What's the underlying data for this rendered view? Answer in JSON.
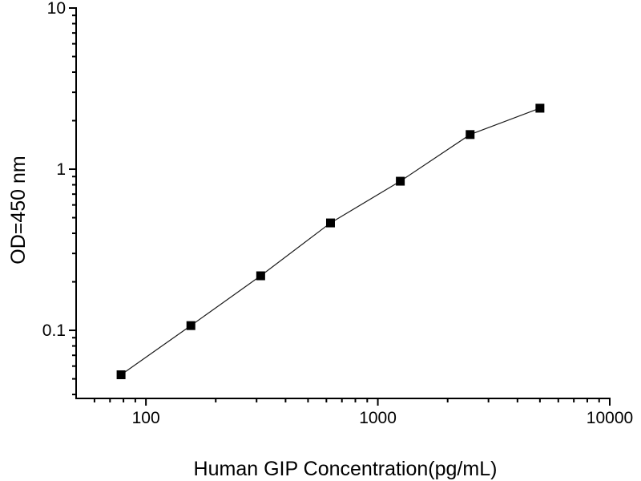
{
  "figure": {
    "background_color": "#ffffff",
    "axis_color": "#000000",
    "marker_color": "#000000",
    "curve_color": "#1a1a1a"
  },
  "chart_data": {
    "type": "line",
    "title": "",
    "xlabel": "Human GIP Concentration(pg/mL)",
    "ylabel": "OD=450 nm",
    "x_scale": "log",
    "y_scale": "log",
    "xlim": [
      50,
      10000
    ],
    "ylim": [
      0.0378,
      10
    ],
    "grid": false,
    "legend": null,
    "x_major_ticks": [
      100,
      1000,
      10000
    ],
    "x_major_tick_labels": [
      "100",
      "1000",
      "10000"
    ],
    "y_major_ticks": [
      10,
      1,
      0.1
    ],
    "y_major_tick_labels": [
      "10",
      "1",
      "0.1"
    ],
    "marker": "filled-square",
    "series": [
      {
        "name": "standard-curve",
        "points": [
          {
            "x": 78.125,
            "y": 0.053
          },
          {
            "x": 156.25,
            "y": 0.107
          },
          {
            "x": 312.5,
            "y": 0.218
          },
          {
            "x": 625,
            "y": 0.464
          },
          {
            "x": 1250,
            "y": 0.842
          },
          {
            "x": 2500,
            "y": 1.64
          },
          {
            "x": 5000,
            "y": 2.39
          }
        ]
      }
    ]
  }
}
